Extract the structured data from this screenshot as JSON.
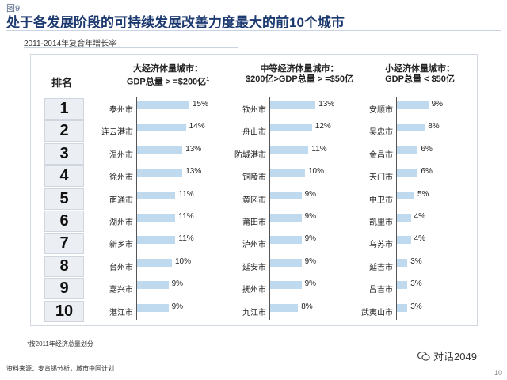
{
  "figure_label": "图9",
  "title": "处于各发展阶段的可持续发展改善力度最大的前10个城市",
  "subtitle": "2011-2014年复合年增长率",
  "rank_header": "排名",
  "ranks": [
    "1",
    "2",
    "3",
    "4",
    "5",
    "6",
    "7",
    "8",
    "9",
    "10"
  ],
  "footnote": "¹按2011年经济总量划分",
  "source": "资料来源：麦肯锡分析，城市中国计划",
  "watermark": "对话2049",
  "page_number": "10",
  "chart_data": {
    "type": "bar",
    "orientation": "horizontal",
    "groups": [
      {
        "title_line1": "大经济体量城市：",
        "title_line2": "GDP总量 > =$200亿",
        "title_sup": "1",
        "categories": [
          "泰州市",
          "连云港市",
          "温州市",
          "徐州市",
          "南通市",
          "湖州市",
          "新乡市",
          "台州市",
          "嘉兴市",
          "湛江市"
        ],
        "values": [
          15,
          14,
          13,
          13,
          11,
          11,
          11,
          10,
          9,
          9
        ],
        "labels": [
          "15%",
          "14%",
          "13%",
          "13%",
          "11%",
          "11%",
          "11%",
          "10%",
          "9%",
          "9%"
        ]
      },
      {
        "title_line1": "中等经济体量城市：",
        "title_line2": "$200亿>GDP总量 > =$50亿",
        "title_sup": "",
        "categories": [
          "钦州市",
          "舟山市",
          "防城港市",
          "铜陵市",
          "黄冈市",
          "莆田市",
          "泸州市",
          "延安市",
          "抚州市",
          "九江市"
        ],
        "values": [
          13,
          12,
          11,
          10,
          9,
          9,
          9,
          9,
          9,
          8
        ],
        "labels": [
          "13%",
          "12%",
          "11%",
          "10%",
          "9%",
          "9%",
          "9%",
          "9%",
          "9%",
          "8%"
        ]
      },
      {
        "title_line1": "小经济体量城市：",
        "title_line2": "GDP总量 < $50亿",
        "title_sup": "",
        "categories": [
          "安顺市",
          "吴忠市",
          "金昌市",
          "天门市",
          "中卫市",
          "凯里市",
          "乌苏市",
          "延吉市",
          "昌吉市",
          "武夷山市"
        ],
        "values": [
          9,
          8,
          6,
          6,
          5,
          4,
          4,
          3,
          3,
          3
        ],
        "labels": [
          "9%",
          "8%",
          "6%",
          "6%",
          "5%",
          "4%",
          "4%",
          "3%",
          "3%",
          "3%"
        ]
      }
    ],
    "colors": {
      "bar": "#bfd9ee",
      "axis": "#555555",
      "title": "#1c3a70"
    }
  }
}
